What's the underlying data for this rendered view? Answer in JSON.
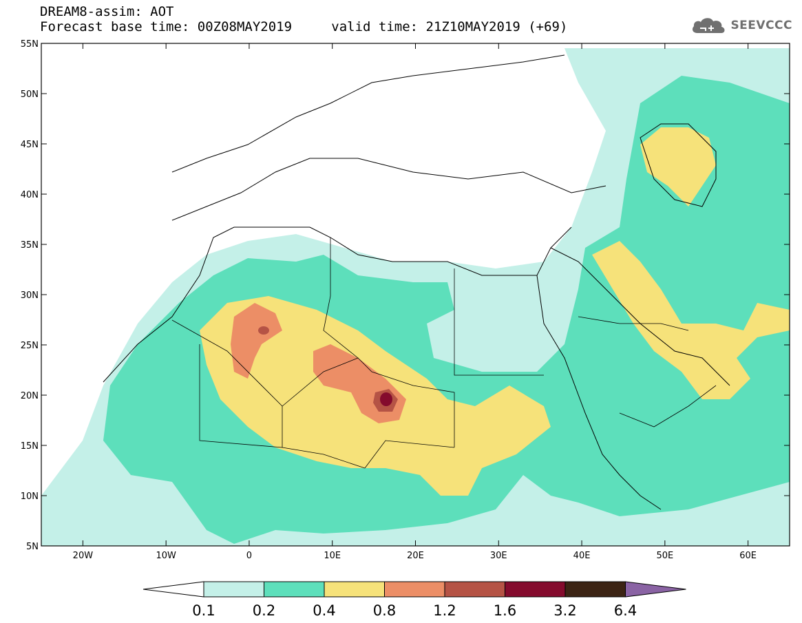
{
  "header": {
    "model_title": "DREAM8-assim: AOT",
    "base_time": "Forecast base time: 00Z08MAY2019",
    "valid_time": "valid time: 21Z10MAY2019 (+69)",
    "logo_text": "SEEVCCC"
  },
  "axes": {
    "lat_labels": [
      "55N",
      "50N",
      "45N",
      "40N",
      "35N",
      "30N",
      "25N",
      "20N",
      "15N",
      "10N",
      "5N"
    ],
    "lon_labels": [
      "20W",
      "10W",
      "0",
      "10E",
      "20E",
      "30E",
      "40E",
      "50E",
      "60E"
    ]
  },
  "colorbar": {
    "labels": [
      "0.1",
      "0.2",
      "0.4",
      "0.8",
      "1.2",
      "1.6",
      "3.2",
      "6.4"
    ],
    "colors": [
      "#ffffff",
      "#c4f0e8",
      "#5ddfbb",
      "#f6e27a",
      "#ec8e66",
      "#b55345",
      "#840b2d",
      "#3c2414",
      "#8a63a4"
    ]
  },
  "field_colors": {
    "c1": "#c4f0e8",
    "c2": "#5ddfbb",
    "c3": "#f6e27a",
    "c4": "#ec8e66",
    "c5": "#b55345",
    "c6": "#840b2d"
  }
}
